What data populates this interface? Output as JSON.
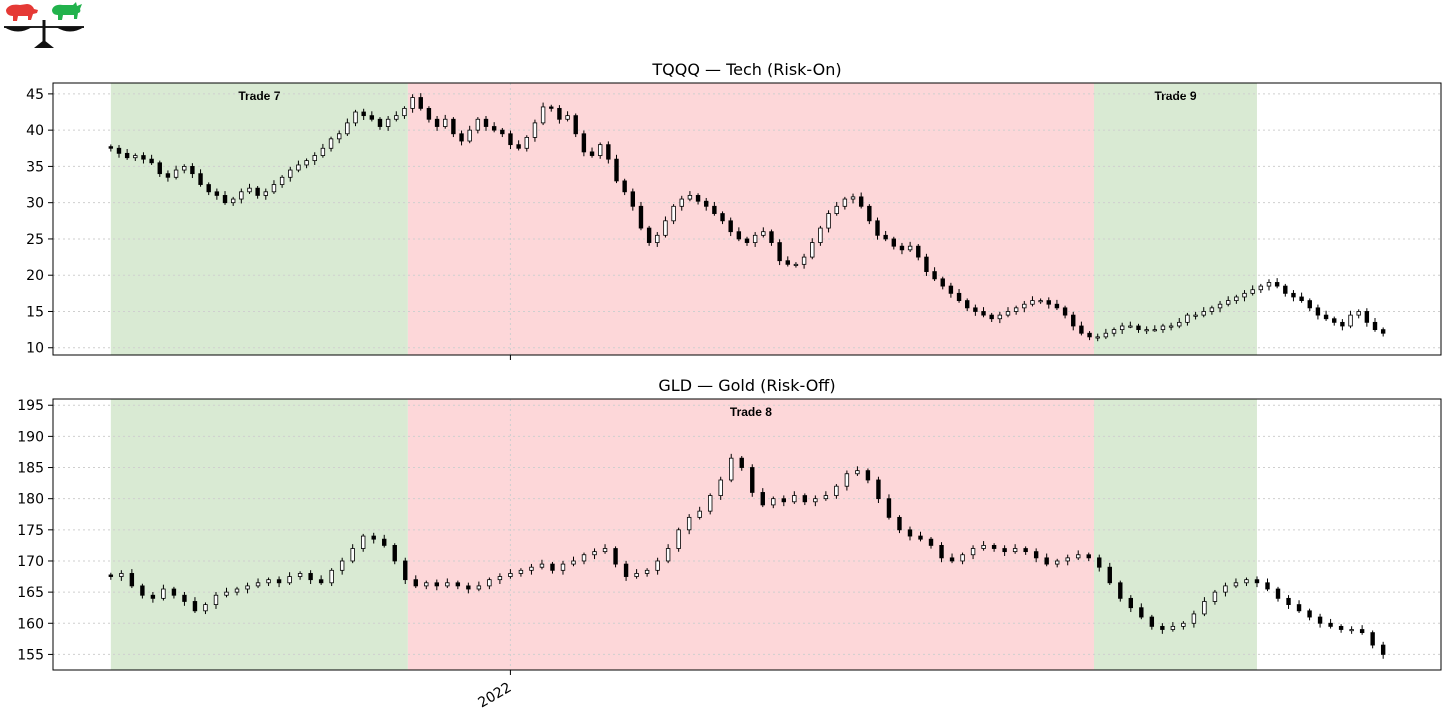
{
  "colors": {
    "risk_on_band": "#d9ead3",
    "risk_off_band": "#fdd7d9",
    "candle_edge": "#000000",
    "bear_logo": "#e53935",
    "bull_logo": "#22b24c"
  },
  "logo": {
    "icons": [
      "bear-icon",
      "bull-icon",
      "scale-icon"
    ]
  },
  "chart_data": [
    {
      "type": "candlestick",
      "title": "TQQQ — Tech (Risk-On)",
      "xlabel": "",
      "ylabel": "",
      "ylim": [
        9,
        46.5
      ],
      "yticks": [
        10,
        15,
        20,
        25,
        30,
        35,
        40,
        45
      ],
      "xticks": [
        {
          "date": "2022-01-01",
          "label": "2022"
        }
      ],
      "x_range": [
        "2021-08-02",
        "2022-11-29"
      ],
      "grid": true,
      "regimes": [
        {
          "start": "2021-08-02",
          "end": "2021-11-23",
          "kind": "risk-on",
          "label": "Trade 7"
        },
        {
          "start": "2021-11-23",
          "end": "2022-08-11",
          "kind": "risk-off",
          "label": ""
        },
        {
          "start": "2022-08-11",
          "end": "2022-10-12",
          "kind": "risk-on",
          "label": "Trade 9"
        }
      ],
      "series": [
        {
          "closes": [
            37.5,
            36.8,
            36.2,
            36.5,
            36.0,
            35.5,
            34.0,
            33.5,
            34.5,
            35.0,
            34.0,
            32.5,
            31.5,
            31.0,
            30.0,
            30.5,
            31.5,
            32.0,
            31.0,
            31.5,
            32.5,
            33.5,
            34.5,
            35.2,
            35.8,
            36.5,
            37.5,
            38.8,
            39.5,
            41.0,
            42.5,
            42.0,
            41.5,
            40.5,
            41.5,
            42.0,
            43.0,
            44.5,
            43.0,
            41.5,
            40.5,
            41.5,
            39.5,
            38.5,
            40.0,
            41.5,
            40.5,
            40.0,
            39.5,
            38.0,
            37.5,
            39.0,
            41.0,
            43.2,
            43.0,
            41.5,
            42.0,
            39.5,
            37.0,
            36.5,
            38.0,
            36.0,
            33.0,
            31.5,
            29.5,
            26.5,
            24.5,
            25.5,
            27.5,
            29.5,
            30.5,
            31.0,
            30.2,
            29.5,
            28.5,
            27.5,
            26.0,
            25.0,
            24.5,
            25.5,
            26.0,
            24.5,
            22.0,
            21.5,
            21.5,
            22.5,
            24.5,
            26.5,
            28.5,
            29.5,
            30.5,
            30.8,
            29.5,
            27.5,
            25.5,
            25.0,
            24.0,
            23.5,
            24.0,
            22.5,
            20.5,
            19.5,
            18.5,
            17.5,
            16.5,
            15.5,
            15.0,
            14.5,
            14.0,
            14.5,
            15.0,
            15.5,
            16.0,
            16.5,
            16.5,
            16.0,
            15.5,
            14.5,
            13.0,
            12.0,
            11.5,
            11.5,
            12.0,
            12.5,
            13.0,
            13.0,
            12.5,
            12.5,
            12.5,
            13.0,
            13.0,
            13.5,
            14.5,
            14.5,
            15.0,
            15.5,
            16.0,
            16.5,
            17.0,
            17.5,
            18.0,
            18.5,
            19.0,
            18.5,
            17.5,
            17.0,
            16.5,
            15.5,
            14.5,
            14.0,
            13.5,
            13.0,
            14.5,
            15.0,
            13.5,
            12.5,
            12.0
          ]
        }
      ]
    },
    {
      "type": "candlestick",
      "title": "GLD — Gold (Risk-Off)",
      "xlabel": "",
      "ylabel": "",
      "ylim": [
        152.5,
        196
      ],
      "yticks": [
        155,
        160,
        165,
        170,
        175,
        180,
        185,
        190,
        195
      ],
      "xticks": [
        {
          "date": "2022-01-01",
          "label": "2022"
        }
      ],
      "x_range": [
        "2021-08-02",
        "2022-11-29"
      ],
      "grid": true,
      "regimes": [
        {
          "start": "2021-08-02",
          "end": "2021-11-23",
          "kind": "risk-on",
          "label": ""
        },
        {
          "start": "2021-11-23",
          "end": "2022-08-11",
          "kind": "risk-off",
          "label": "Trade 8"
        },
        {
          "start": "2022-08-11",
          "end": "2022-10-12",
          "kind": "risk-on",
          "label": ""
        }
      ],
      "series": [
        {
          "closes": [
            167.5,
            168.0,
            166.0,
            164.5,
            164.0,
            165.5,
            164.5,
            163.5,
            162.0,
            163.0,
            164.5,
            165.0,
            165.5,
            166.0,
            166.5,
            167.0,
            166.5,
            167.5,
            168.0,
            167.0,
            166.5,
            168.5,
            170.0,
            172.0,
            174.0,
            173.5,
            172.5,
            170.0,
            167.0,
            166.0,
            166.5,
            166.0,
            166.5,
            166.0,
            165.5,
            166.0,
            167.0,
            167.5,
            168.0,
            168.5,
            169.0,
            169.5,
            168.5,
            169.5,
            170.0,
            171.0,
            171.5,
            172.0,
            169.5,
            167.5,
            168.0,
            168.5,
            170.0,
            172.0,
            175.0,
            177.0,
            178.0,
            180.5,
            183.0,
            186.5,
            185.0,
            181.0,
            179.0,
            180.0,
            179.5,
            180.5,
            179.5,
            180.0,
            180.5,
            182.0,
            184.0,
            184.5,
            183.0,
            180.0,
            177.0,
            175.0,
            174.0,
            173.5,
            172.5,
            170.5,
            170.0,
            171.0,
            172.0,
            172.5,
            172.0,
            171.5,
            172.0,
            171.5,
            170.5,
            169.5,
            170.0,
            170.5,
            171.0,
            170.5,
            169.0,
            166.5,
            164.0,
            162.5,
            161.0,
            159.5,
            159.0,
            159.5,
            160.0,
            161.5,
            163.5,
            165.0,
            166.0,
            166.5,
            167.0,
            166.5,
            165.5,
            164.0,
            163.0,
            162.0,
            161.0,
            160.0,
            159.5,
            159.0,
            159.0,
            158.5,
            156.5,
            155.0
          ]
        }
      ]
    }
  ]
}
